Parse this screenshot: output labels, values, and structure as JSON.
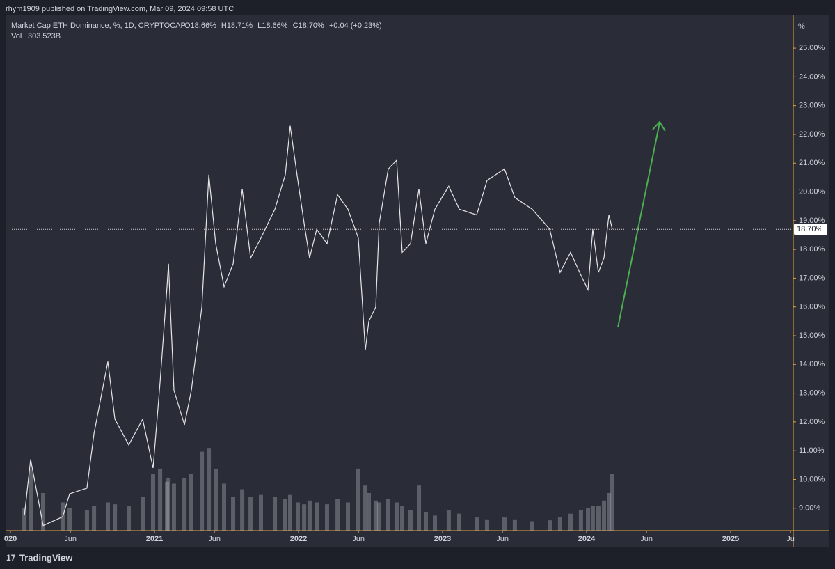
{
  "header": "rhym1909 published on TradingView.com, Mar 09, 2024 09:58 UTC",
  "footer": "TradingView",
  "chart_data": {
    "type": "line",
    "title": "Market Cap ETH Dominance, %, 1D, CRYPTOCAP",
    "ohlc": [
      "O18.66%",
      "H18.71%",
      "L18.66%",
      "C18.70%",
      "+0.04 (+0.23%)"
    ],
    "axis_unit": "%",
    "color": "#e6e6e6",
    "x": [
      2020.097,
      2020.14,
      2020.227,
      2020.362,
      2020.411,
      2020.531,
      2020.58,
      2020.676,
      2020.725,
      2020.821,
      2020.918,
      2020.99,
      2021.039,
      2021.087,
      2021.097,
      2021.135,
      2021.208,
      2021.256,
      2021.329,
      2021.377,
      2021.425,
      2021.483,
      2021.546,
      2021.609,
      2021.667,
      2021.739,
      2021.836,
      2021.908,
      2021.942,
      2021.995,
      2022.039,
      2022.077,
      2022.126,
      2022.198,
      2022.271,
      2022.343,
      2022.415,
      2022.464,
      2022.488,
      2022.536,
      2022.56,
      2022.623,
      2022.681,
      2022.72,
      2022.778,
      2022.836,
      2022.884,
      2022.947,
      2023.043,
      2023.116,
      2023.237,
      2023.309,
      2023.43,
      2023.502,
      2023.623,
      2023.744,
      2023.816,
      2023.889,
      2023.961,
      2024.01,
      2024.043,
      2024.082,
      2024.121,
      2024.155,
      2024.179
    ],
    "values": [
      8.75,
      10.7,
      8.4,
      8.7,
      9.5,
      9.7,
      11.6,
      14.1,
      12.1,
      11.2,
      12.1,
      10.4,
      13.4,
      16.7,
      17.5,
      13.1,
      11.9,
      13.1,
      16.0,
      20.6,
      18.2,
      16.7,
      17.5,
      20.1,
      17.7,
      18.4,
      19.4,
      20.6,
      22.3,
      20.4,
      18.9,
      17.7,
      18.7,
      18.2,
      19.9,
      19.4,
      18.4,
      14.5,
      15.5,
      16.0,
      18.9,
      20.8,
      21.1,
      17.9,
      18.2,
      20.1,
      18.2,
      19.4,
      20.2,
      19.4,
      19.2,
      20.4,
      20.8,
      19.8,
      19.4,
      18.7,
      17.2,
      17.9,
      17.1,
      16.6,
      18.7,
      17.2,
      17.7,
      19.2,
      18.7
    ],
    "volume": {
      "label": "Vol",
      "last_label": "303.523B",
      "color": "rgba(190,190,195,0.35)",
      "axis": "y2",
      "values": [
        120,
        330,
        200,
        150,
        120,
        110,
        130,
        150,
        140,
        130,
        180,
        300,
        330,
        260,
        280,
        250,
        280,
        300,
        420,
        440,
        330,
        250,
        180,
        220,
        180,
        190,
        180,
        170,
        190,
        150,
        140,
        160,
        150,
        140,
        170,
        150,
        330,
        240,
        200,
        160,
        150,
        170,
        150,
        130,
        110,
        240,
        100,
        80,
        110,
        90,
        70,
        60,
        70,
        60,
        50,
        55,
        70,
        90,
        110,
        120,
        130,
        130,
        160,
        200,
        303.523
      ]
    },
    "y2lim": [
      0,
      2740
    ],
    "last_price": {
      "value": 18.7,
      "label": "18.70%"
    },
    "xlim": [
      2019.966,
      2025.435
    ],
    "ylim": [
      8.22,
      26.14
    ],
    "xticks": [
      {
        "value": 2020,
        "label": "020"
      },
      {
        "value": 2020.416,
        "label": "Jun"
      },
      2021,
      {
        "value": 2021.416,
        "label": "Jun"
      },
      2022,
      {
        "value": 2022.416,
        "label": "Jun"
      },
      2023,
      {
        "value": 2023.416,
        "label": "Jun"
      },
      2024,
      {
        "value": 2024.416,
        "label": "Jun"
      },
      2025,
      {
        "value": 2025.416,
        "label": "Ju"
      }
    ],
    "yticks": [
      {
        "value": 9,
        "label": "9.00%"
      },
      {
        "value": 10,
        "label": "10.00%"
      },
      {
        "value": 11,
        "label": "11.00%"
      },
      {
        "value": 12,
        "label": "12.00%"
      },
      {
        "value": 13,
        "label": "13.00%"
      },
      {
        "value": 14,
        "label": "14.00%"
      },
      {
        "value": 15,
        "label": "15.00%"
      },
      {
        "value": 16,
        "label": "16.00%"
      },
      {
        "value": 17,
        "label": "17.00%"
      },
      {
        "value": 18,
        "label": "18.00%"
      },
      {
        "value": 19,
        "label": "19.00%"
      },
      {
        "value": 20,
        "label": "20.00%"
      },
      {
        "value": 21,
        "label": "21.00%"
      },
      {
        "value": 22,
        "label": "22.00%"
      },
      {
        "value": 23,
        "label": "23.00%"
      },
      {
        "value": 24,
        "label": "24.00%"
      },
      {
        "value": 25,
        "label": "25.00%"
      }
    ]
  }
}
